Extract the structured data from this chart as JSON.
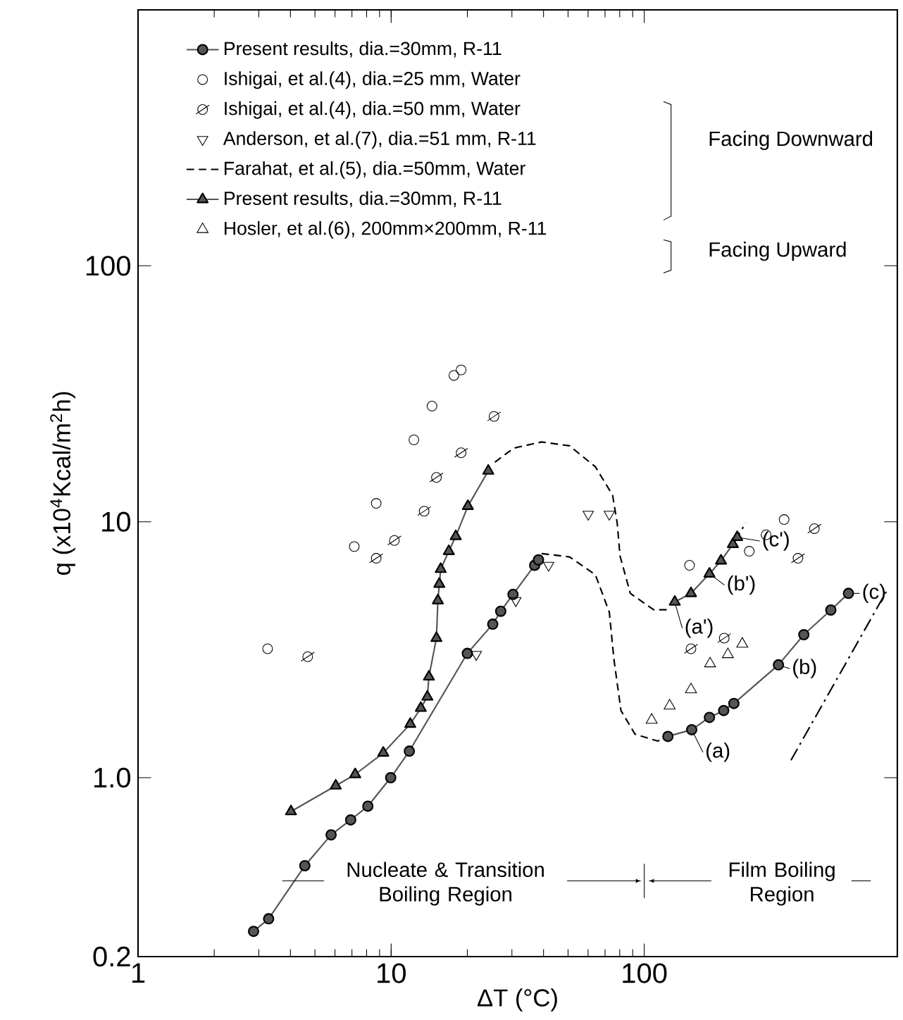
{
  "chart_data": {
    "type": "scatter",
    "xlabel": "ΔT (°C)",
    "ylabel": "q (x10$^{4}$Kcal/m$^{2}$h)",
    "log": "xy",
    "xlim": [
      1,
      1000
    ],
    "ylim": [
      0.2,
      1000
    ],
    "xticks": [
      1,
      10,
      100
    ],
    "yticks": [
      0.2,
      {
        "value": 1,
        "label": "1.0"
      },
      10,
      100
    ],
    "legend": "top left",
    "series": [
      {
        "name": "Present results, dia.=30mm, R-11",
        "type": "line",
        "marker": "circle",
        "color": "#555555",
        "line_style": "solid",
        "x": [
          2.86,
          3.28,
          4.56,
          5.79,
          6.92,
          8.09,
          9.96,
          11.8,
          20,
          25.2,
          27.1,
          30.3,
          36.9,
          38.2
        ],
        "values": [
          0.251,
          0.281,
          0.453,
          0.598,
          0.684,
          0.774,
          1.0,
          1.27,
          3.06,
          3.98,
          4.47,
          5.2,
          6.76,
          7.1
        ]
      },
      {
        "name": "Ishigai, et al.(4), dia.=25 mm, Water",
        "marker": "circle-open",
        "color": "#000000",
        "x": [
          3.25,
          7.15,
          8.73,
          12.3,
          14.5,
          17.7,
          18.9,
          151,
          260,
          303,
          357
        ],
        "values": [
          3.19,
          8.0,
          11.8,
          20.9,
          28.3,
          37.3,
          39.2,
          6.76,
          7.67,
          8.89,
          10.2
        ]
      },
      {
        "name": "Ishigai, et al.(4), dia.=50 mm, Water",
        "marker": "cross",
        "color": "#000000",
        "x": [
          4.68,
          8.73,
          10.3,
          13.5,
          15.1,
          18.9,
          25.5,
          153,
          207,
          405,
          470
        ],
        "values": [
          2.97,
          7.2,
          8.45,
          11.0,
          14.9,
          18.6,
          25.8,
          3.19,
          3.51,
          7.2,
          9.4
        ]
      },
      {
        "name": "Anderson, et al.(7), dia.=51 mm, R-11",
        "marker": "triangle-down-open",
        "color": "#000000",
        "x": [
          21.7,
          31.1,
          41.9,
          60.1,
          72.8
        ],
        "values": [
          3.03,
          4.92,
          6.76,
          10.7,
          10.7
        ]
      },
      {
        "name": "Farahat, et al.(5), dia.=50mm, Water",
        "type": "line",
        "marker": "none",
        "color": "#000000",
        "line_style": "dashed",
        "x": [
          25.7,
          30.5,
          39.3,
          50.7,
          64.1,
          75,
          78.2,
          80.2,
          88.1,
          109,
          126
        ],
        "values": [
          17.1,
          19.4,
          20.5,
          19.8,
          16.4,
          12.7,
          9.88,
          7.36,
          5.25,
          4.53,
          4.53
        ]
      },
      {
        "name": "Present results, dia.=30mm, R-11",
        "type": "line",
        "marker": "triangle",
        "color": "#555555",
        "line_style": "solid",
        "x": [
          4.02,
          6.04,
          7.21,
          9.31,
          11.9,
          13.1,
          13.9,
          14.1,
          15.1,
          15.3,
          15.5,
          15.7,
          16.9,
          18.0,
          20.1,
          24.2
        ],
        "values": [
          0.738,
          0.93,
          1.03,
          1.25,
          1.62,
          1.87,
          2.07,
          2.48,
          3.51,
          4.92,
          5.71,
          6.53,
          7.67,
          8.77,
          11.5,
          15.8
        ]
      },
      {
        "name": "Hosler, et al.(6), 200mm×200mm, R-11",
        "marker": "triangle-open",
        "color": "#000000",
        "x": [
          107,
          126,
          153,
          182,
          214,
          244
        ],
        "values": [
          1.68,
          1.91,
          2.21,
          2.79,
          3.03,
          3.33
        ]
      },
      {
        "type": "line",
        "marker": "circle",
        "color": "#555555",
        "line_style": "solid",
        "x": [
          124,
          154,
          181,
          206,
          226,
          339,
          427,
          546,
          641
        ],
        "values": [
          1.45,
          1.54,
          1.72,
          1.83,
          1.95,
          2.76,
          3.62,
          4.52,
          5.25
        ]
      },
      {
        "type": "line",
        "marker": "none",
        "color": "#000000",
        "line_style": "dashed",
        "x": [
          39.3,
          50.7,
          64.1,
          72.8,
          75.9,
          80.9,
          91.9,
          113,
          124
        ],
        "values": [
          7.51,
          7.29,
          6.21,
          4.43,
          2.9,
          1.83,
          1.48,
          1.39,
          1.45
        ]
      },
      {
        "type": "line",
        "marker": "triangle",
        "color": "#555555",
        "line_style": "solid",
        "x": [
          132,
          153,
          181,
          201,
          224,
          233
        ],
        "values": [
          4.86,
          5.25,
          6.26,
          7.04,
          8.17,
          8.7
        ]
      },
      {
        "type": "line",
        "marker": "none",
        "color": "#000000",
        "line_style": "dashdot",
        "x": [
          224,
          252
        ],
        "values": [
          8.17,
          9.9
        ]
      },
      {
        "type": "line",
        "marker": "none",
        "color": "#000000",
        "line_style": "dashdot",
        "x": [
          380,
          907
        ],
        "values": [
          1.17,
          5.36
        ]
      }
    ],
    "annotations": [
      "Facing Downward",
      "Facing Upward",
      "Nucleate & Transition Boiling Region",
      "Film Boiling Region",
      {
        "text": "(a)",
        "x": 154,
        "y": 1.54
      },
      {
        "text": "(b)",
        "x": 339,
        "y": 2.76
      },
      {
        "text": "(c)",
        "x": 641,
        "y": 5.25
      },
      {
        "text": "(a')",
        "x": 132,
        "y": 4.86
      },
      {
        "text": "(b')",
        "x": 181,
        "y": 6.26
      },
      {
        "text": "(c')",
        "x": 233,
        "y": 8.7
      }
    ]
  }
}
